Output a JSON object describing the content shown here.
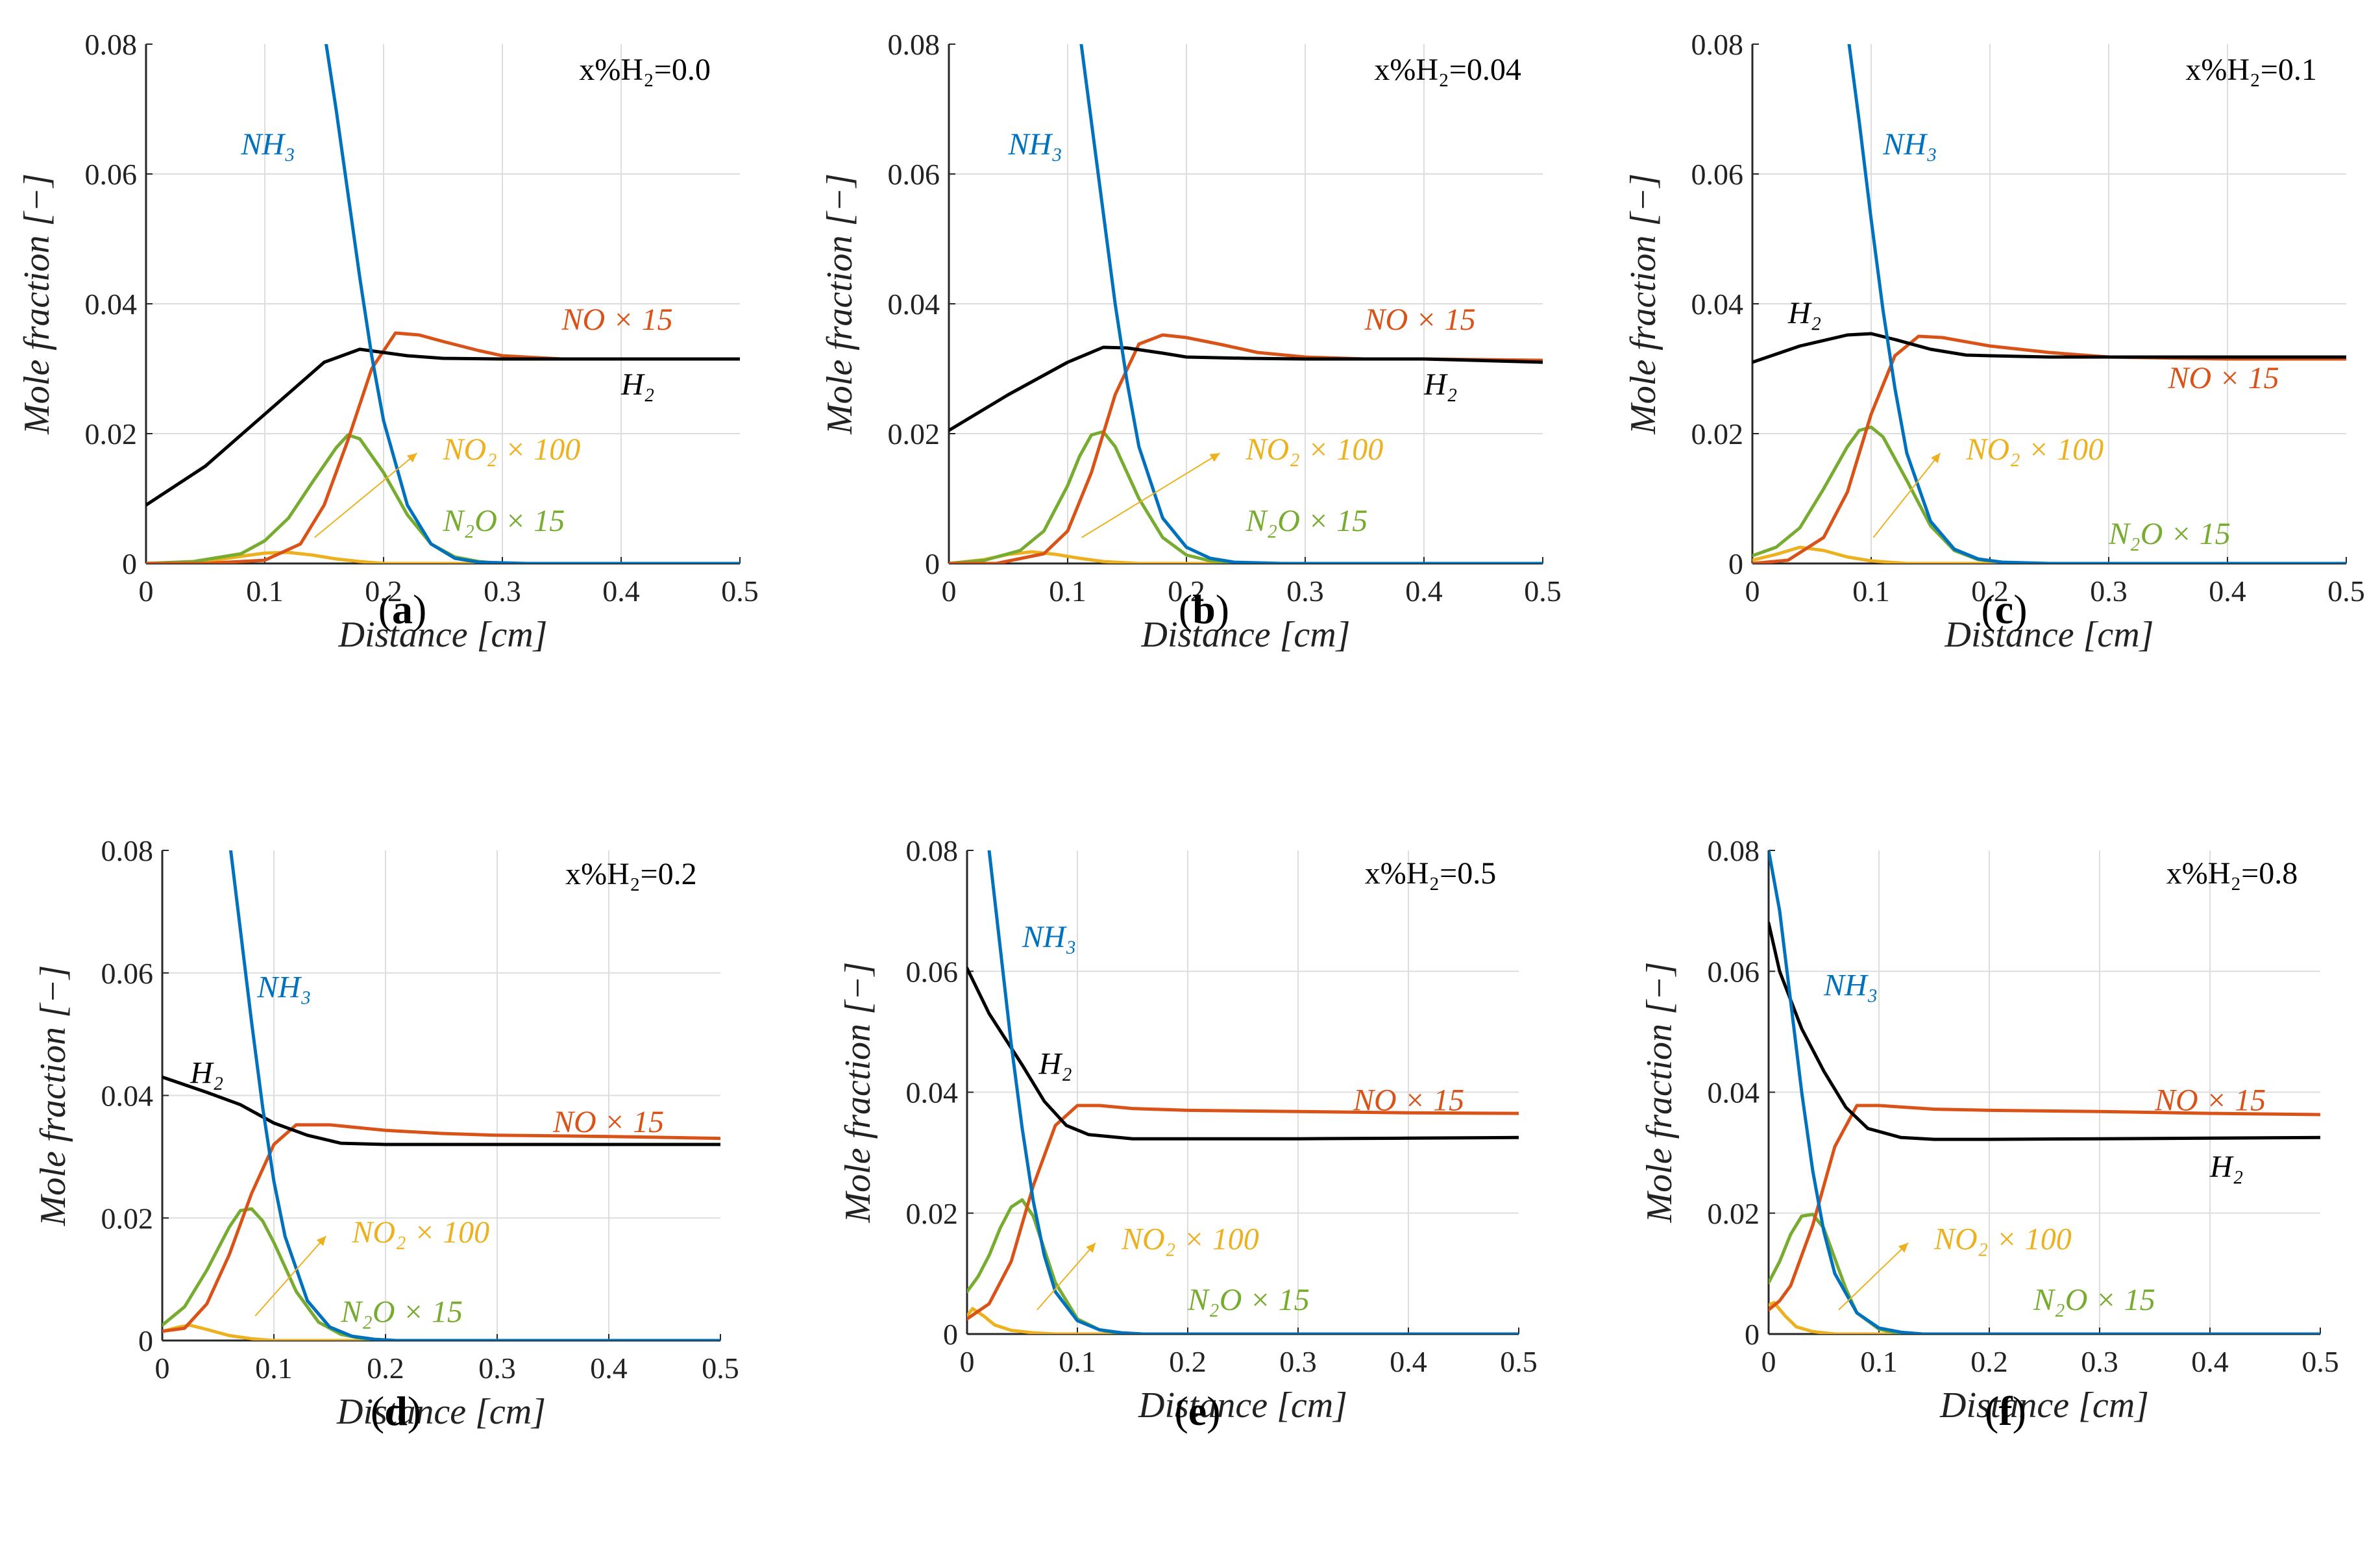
{
  "figure": {
    "axis_y_label_text": "Mole fraction [−]",
    "axis_x_label_text": "Distance [cm]",
    "x_tick_labels": [
      "0",
      "0.1",
      "0.2",
      "0.3",
      "0.4",
      "0.5"
    ],
    "y_tick_labels": [
      "0",
      "0.02",
      "0.04",
      "0.06",
      "0.08"
    ],
    "colors": {
      "NH3": "#0072BD",
      "H2": "#000000",
      "NO": "#D95319",
      "NO2": "#EDB120",
      "N2O": "#77AC30",
      "grid": "#dddddd"
    }
  },
  "chart_data": [
    {
      "type": "line",
      "panel_label": "a",
      "condition_label": "x%H₂=0.0",
      "xlabel": "Distance [cm]",
      "ylabel": "Mole fraction [−]",
      "xlim": [
        0,
        0.5
      ],
      "ylim": [
        0,
        0.08
      ],
      "grid": true,
      "labels": {
        "NH3": "NH₃",
        "H2": "H₂",
        "NO": "NO × 15",
        "NO2": "NO₂ × 100",
        "N2O": "N₂O × 15"
      },
      "series": [
        {
          "name": "NH3",
          "x": [
            0.15,
            0.16,
            0.17,
            0.18,
            0.19,
            0.2,
            0.22,
            0.24,
            0.26,
            0.28,
            0.3,
            0.32,
            0.5
          ],
          "values": [
            0.082,
            0.07,
            0.057,
            0.044,
            0.032,
            0.022,
            0.009,
            0.003,
            0.0008,
            0.0002,
            0.0001,
            0,
            0
          ]
        },
        {
          "name": "H2",
          "x": [
            0,
            0.05,
            0.1,
            0.15,
            0.18,
            0.2,
            0.22,
            0.25,
            0.3,
            0.4,
            0.5
          ],
          "values": [
            0.009,
            0.015,
            0.023,
            0.031,
            0.033,
            0.0325,
            0.032,
            0.0316,
            0.0315,
            0.0315,
            0.0315
          ]
        },
        {
          "name": "NO",
          "x": [
            0,
            0.05,
            0.1,
            0.13,
            0.15,
            0.17,
            0.19,
            0.21,
            0.23,
            0.25,
            0.28,
            0.3,
            0.35,
            0.4,
            0.5
          ],
          "values": [
            0,
            0,
            0.0005,
            0.003,
            0.009,
            0.019,
            0.03,
            0.0355,
            0.0352,
            0.0342,
            0.0328,
            0.032,
            0.0315,
            0.0315,
            0.0315
          ]
        },
        {
          "name": "NO2",
          "x": [
            0,
            0.05,
            0.08,
            0.1,
            0.12,
            0.14,
            0.16,
            0.18,
            0.2,
            0.5
          ],
          "values": [
            0,
            0.0003,
            0.0011,
            0.0016,
            0.0017,
            0.0013,
            0.0007,
            0.0003,
            0,
            0
          ]
        },
        {
          "name": "N2O",
          "x": [
            0,
            0.04,
            0.08,
            0.1,
            0.12,
            0.14,
            0.16,
            0.17,
            0.18,
            0.2,
            0.22,
            0.24,
            0.26,
            0.28,
            0.3,
            0.5
          ],
          "values": [
            0,
            0.0003,
            0.0015,
            0.0035,
            0.007,
            0.0125,
            0.0178,
            0.0198,
            0.0192,
            0.014,
            0.0075,
            0.003,
            0.001,
            0.0003,
            0,
            0
          ]
        }
      ]
    },
    {
      "type": "line",
      "panel_label": "b",
      "condition_label": "x%H₂=0.04",
      "xlabel": "Distance [cm]",
      "ylabel": "Mole fraction [−]",
      "xlim": [
        0,
        0.5
      ],
      "ylim": [
        0,
        0.08
      ],
      "grid": true,
      "labels": {
        "NH3": "NH₃",
        "H2": "H₂",
        "NO": "NO × 15",
        "NO2": "NO₂ × 100",
        "N2O": "N₂O × 15"
      },
      "series": [
        {
          "name": "NH3",
          "x": [
            0.11,
            0.12,
            0.13,
            0.14,
            0.15,
            0.16,
            0.18,
            0.2,
            0.22,
            0.24,
            0.26,
            0.28,
            0.5
          ],
          "values": [
            0.082,
            0.068,
            0.054,
            0.04,
            0.028,
            0.018,
            0.007,
            0.0025,
            0.0008,
            0.0002,
            0.0001,
            0,
            0
          ]
        },
        {
          "name": "H2",
          "x": [
            0,
            0.05,
            0.1,
            0.13,
            0.15,
            0.18,
            0.2,
            0.25,
            0.3,
            0.4,
            0.5
          ],
          "values": [
            0.0205,
            0.026,
            0.031,
            0.0333,
            0.0332,
            0.0324,
            0.0318,
            0.0316,
            0.0315,
            0.0315,
            0.031
          ]
        },
        {
          "name": "NO",
          "x": [
            0,
            0.04,
            0.08,
            0.1,
            0.12,
            0.14,
            0.16,
            0.18,
            0.2,
            0.23,
            0.26,
            0.3,
            0.35,
            0.4,
            0.5
          ],
          "values": [
            0,
            0,
            0.0015,
            0.005,
            0.014,
            0.026,
            0.0338,
            0.0352,
            0.0348,
            0.0337,
            0.0325,
            0.0318,
            0.0315,
            0.0315,
            0.0313
          ]
        },
        {
          "name": "NO2",
          "x": [
            0,
            0.03,
            0.05,
            0.07,
            0.09,
            0.11,
            0.13,
            0.16,
            0.5
          ],
          "values": [
            0,
            0.0006,
            0.0014,
            0.0018,
            0.0014,
            0.0008,
            0.0003,
            0,
            0
          ]
        },
        {
          "name": "N2O",
          "x": [
            0,
            0.03,
            0.06,
            0.08,
            0.1,
            0.11,
            0.12,
            0.13,
            0.14,
            0.16,
            0.18,
            0.2,
            0.22,
            0.25,
            0.5
          ],
          "values": [
            0,
            0.0005,
            0.002,
            0.005,
            0.012,
            0.0165,
            0.0198,
            0.0203,
            0.018,
            0.01,
            0.004,
            0.0013,
            0.0004,
            0,
            0
          ]
        }
      ]
    },
    {
      "type": "line",
      "panel_label": "c",
      "condition_label": "x%H₂=0.1",
      "xlabel": "Distance [cm]",
      "ylabel": "Mole fraction [−]",
      "xlim": [
        0,
        0.5
      ],
      "ylim": [
        0,
        0.08
      ],
      "grid": true,
      "labels": {
        "NH3": "NH₃",
        "H2": "H₂",
        "NO": "NO × 15",
        "NO2": "NO₂ × 100",
        "N2O": "N₂O × 15"
      },
      "series": [
        {
          "name": "NH3",
          "x": [
            0.08,
            0.09,
            0.1,
            0.11,
            0.12,
            0.13,
            0.15,
            0.17,
            0.19,
            0.21,
            0.23,
            0.25,
            0.5
          ],
          "values": [
            0.082,
            0.068,
            0.053,
            0.039,
            0.027,
            0.017,
            0.0065,
            0.0022,
            0.0007,
            0.0002,
            0.0001,
            0,
            0
          ]
        },
        {
          "name": "H2",
          "x": [
            0,
            0.04,
            0.08,
            0.1,
            0.12,
            0.15,
            0.18,
            0.2,
            0.25,
            0.3,
            0.4,
            0.5
          ],
          "values": [
            0.031,
            0.0335,
            0.0352,
            0.0354,
            0.0345,
            0.033,
            0.0321,
            0.032,
            0.0318,
            0.0318,
            0.0318,
            0.0318
          ]
        },
        {
          "name": "NO",
          "x": [
            0,
            0.03,
            0.06,
            0.08,
            0.1,
            0.12,
            0.14,
            0.16,
            0.2,
            0.25,
            0.3,
            0.4,
            0.5
          ],
          "values": [
            0,
            0.0005,
            0.004,
            0.011,
            0.023,
            0.032,
            0.035,
            0.0348,
            0.0335,
            0.0325,
            0.0318,
            0.0315,
            0.0315
          ]
        },
        {
          "name": "NO2",
          "x": [
            0,
            0.02,
            0.04,
            0.06,
            0.08,
            0.1,
            0.13,
            0.5
          ],
          "values": [
            0.0005,
            0.0014,
            0.0025,
            0.002,
            0.001,
            0.0004,
            0,
            0
          ]
        },
        {
          "name": "N2O",
          "x": [
            0,
            0.02,
            0.04,
            0.06,
            0.08,
            0.09,
            0.1,
            0.11,
            0.13,
            0.15,
            0.17,
            0.19,
            0.22,
            0.5
          ],
          "values": [
            0.0012,
            0.0025,
            0.0055,
            0.0115,
            0.018,
            0.0205,
            0.021,
            0.0195,
            0.0128,
            0.0058,
            0.002,
            0.0006,
            0,
            0
          ]
        }
      ]
    },
    {
      "type": "line",
      "panel_label": "d",
      "condition_label": "x%H₂=0.2",
      "xlabel": "Distance [cm]",
      "ylabel": "Mole fraction [−]",
      "xlim": [
        0,
        0.5
      ],
      "ylim": [
        0,
        0.08
      ],
      "grid": true,
      "labels": {
        "NH3": "NH₃",
        "H2": "H₂",
        "NO": "NO × 15",
        "NO2": "NO₂ × 100",
        "N2O": "N₂O × 15"
      },
      "series": [
        {
          "name": "NH3",
          "x": [
            0.06,
            0.07,
            0.08,
            0.09,
            0.1,
            0.11,
            0.13,
            0.15,
            0.17,
            0.19,
            0.21,
            0.5
          ],
          "values": [
            0.082,
            0.067,
            0.052,
            0.038,
            0.026,
            0.017,
            0.0065,
            0.0022,
            0.0007,
            0.0002,
            0,
            0
          ]
        },
        {
          "name": "H2",
          "x": [
            0,
            0.04,
            0.07,
            0.1,
            0.13,
            0.16,
            0.2,
            0.25,
            0.3,
            0.4,
            0.5
          ],
          "values": [
            0.043,
            0.0405,
            0.0385,
            0.0355,
            0.0335,
            0.0322,
            0.032,
            0.032,
            0.032,
            0.032,
            0.032
          ]
        },
        {
          "name": "NO",
          "x": [
            0,
            0.02,
            0.04,
            0.06,
            0.08,
            0.1,
            0.12,
            0.15,
            0.2,
            0.25,
            0.3,
            0.4,
            0.5
          ],
          "values": [
            0.0015,
            0.002,
            0.006,
            0.014,
            0.024,
            0.032,
            0.0352,
            0.0352,
            0.0343,
            0.0338,
            0.0335,
            0.0333,
            0.033
          ]
        },
        {
          "name": "NO2",
          "x": [
            0,
            0.015,
            0.025,
            0.04,
            0.06,
            0.08,
            0.1,
            0.5
          ],
          "values": [
            0.0015,
            0.0022,
            0.0025,
            0.0018,
            0.0008,
            0.0003,
            0,
            0
          ]
        },
        {
          "name": "N2O",
          "x": [
            0,
            0.02,
            0.04,
            0.06,
            0.07,
            0.08,
            0.09,
            0.1,
            0.12,
            0.14,
            0.16,
            0.18,
            0.2,
            0.5
          ],
          "values": [
            0.0025,
            0.0055,
            0.0115,
            0.0185,
            0.0212,
            0.0215,
            0.0195,
            0.016,
            0.008,
            0.003,
            0.001,
            0.0003,
            0,
            0
          ]
        }
      ]
    },
    {
      "type": "line",
      "panel_label": "e",
      "condition_label": "x%H₂=0.5",
      "xlabel": "Distance [cm]",
      "ylabel": "Mole fraction [−]",
      "xlim": [
        0,
        0.5
      ],
      "ylim": [
        0,
        0.08
      ],
      "grid": true,
      "labels": {
        "NH3": "NH₃",
        "H2": "H₂",
        "NO": "NO × 15",
        "NO2": "NO₂ × 100",
        "N2O": "N₂O × 15"
      },
      "series": [
        {
          "name": "NH3",
          "x": [
            0.02,
            0.03,
            0.04,
            0.05,
            0.06,
            0.07,
            0.08,
            0.1,
            0.12,
            0.14,
            0.16,
            0.5
          ],
          "values": [
            0.08,
            0.064,
            0.048,
            0.034,
            0.022,
            0.013,
            0.007,
            0.0022,
            0.0007,
            0.0002,
            0,
            0
          ]
        },
        {
          "name": "H2",
          "x": [
            0,
            0.02,
            0.05,
            0.07,
            0.09,
            0.11,
            0.15,
            0.2,
            0.3,
            0.4,
            0.5
          ],
          "values": [
            0.0605,
            0.053,
            0.0445,
            0.0385,
            0.0345,
            0.033,
            0.0323,
            0.0323,
            0.0323,
            0.0324,
            0.0325
          ]
        },
        {
          "name": "NO",
          "x": [
            0,
            0.02,
            0.04,
            0.06,
            0.08,
            0.1,
            0.12,
            0.15,
            0.2,
            0.3,
            0.4,
            0.5
          ],
          "values": [
            0.0025,
            0.005,
            0.012,
            0.0245,
            0.0345,
            0.0378,
            0.0378,
            0.0373,
            0.037,
            0.0368,
            0.0366,
            0.0365
          ]
        },
        {
          "name": "NO2",
          "x": [
            0,
            0.005,
            0.015,
            0.025,
            0.04,
            0.06,
            0.08,
            0.5
          ],
          "values": [
            0.003,
            0.0042,
            0.003,
            0.0015,
            0.0006,
            0.0002,
            0,
            0
          ]
        },
        {
          "name": "N2O",
          "x": [
            0,
            0.01,
            0.02,
            0.03,
            0.04,
            0.05,
            0.06,
            0.07,
            0.08,
            0.1,
            0.12,
            0.14,
            0.5
          ],
          "values": [
            0.007,
            0.0095,
            0.013,
            0.0175,
            0.021,
            0.0222,
            0.0195,
            0.014,
            0.0085,
            0.0025,
            0.0007,
            0,
            0
          ]
        }
      ]
    },
    {
      "type": "line",
      "panel_label": "f",
      "condition_label": "x%H₂=0.8",
      "xlabel": "Distance [cm]",
      "ylabel": "Mole fraction [−]",
      "xlim": [
        0,
        0.5
      ],
      "ylim": [
        0,
        0.08
      ],
      "grid": true,
      "labels": {
        "NH3": "NH₃",
        "H2": "H₂",
        "NO": "NO × 15",
        "NO2": "NO₂ × 100",
        "N2O": "N₂O × 15"
      },
      "series": [
        {
          "name": "NH3",
          "x": [
            0,
            0.01,
            0.02,
            0.03,
            0.04,
            0.05,
            0.06,
            0.08,
            0.1,
            0.12,
            0.14,
            0.5
          ],
          "values": [
            0.08,
            0.07,
            0.055,
            0.04,
            0.027,
            0.017,
            0.01,
            0.0035,
            0.001,
            0.0003,
            0,
            0
          ]
        },
        {
          "name": "H2",
          "x": [
            0,
            0.01,
            0.03,
            0.05,
            0.07,
            0.09,
            0.12,
            0.15,
            0.2,
            0.3,
            0.4,
            0.5
          ],
          "values": [
            0.068,
            0.06,
            0.0505,
            0.0435,
            0.0375,
            0.034,
            0.0325,
            0.0322,
            0.0322,
            0.0323,
            0.0324,
            0.0325
          ]
        },
        {
          "name": "NO",
          "x": [
            0,
            0.01,
            0.02,
            0.04,
            0.06,
            0.08,
            0.1,
            0.15,
            0.2,
            0.3,
            0.4,
            0.5
          ],
          "values": [
            0.004,
            0.0055,
            0.008,
            0.018,
            0.031,
            0.0378,
            0.0378,
            0.0372,
            0.037,
            0.0368,
            0.0365,
            0.0363
          ]
        },
        {
          "name": "NO2",
          "x": [
            0,
            0.005,
            0.015,
            0.025,
            0.04,
            0.06,
            0.5
          ],
          "values": [
            0.0048,
            0.0052,
            0.003,
            0.0012,
            0.0004,
            0,
            0
          ]
        },
        {
          "name": "N2O",
          "x": [
            0,
            0.01,
            0.02,
            0.03,
            0.04,
            0.05,
            0.06,
            0.07,
            0.08,
            0.1,
            0.12,
            0.5
          ],
          "values": [
            0.0085,
            0.012,
            0.0165,
            0.0195,
            0.0198,
            0.0175,
            0.0125,
            0.0075,
            0.0035,
            0.0008,
            0,
            0
          ]
        }
      ]
    }
  ]
}
